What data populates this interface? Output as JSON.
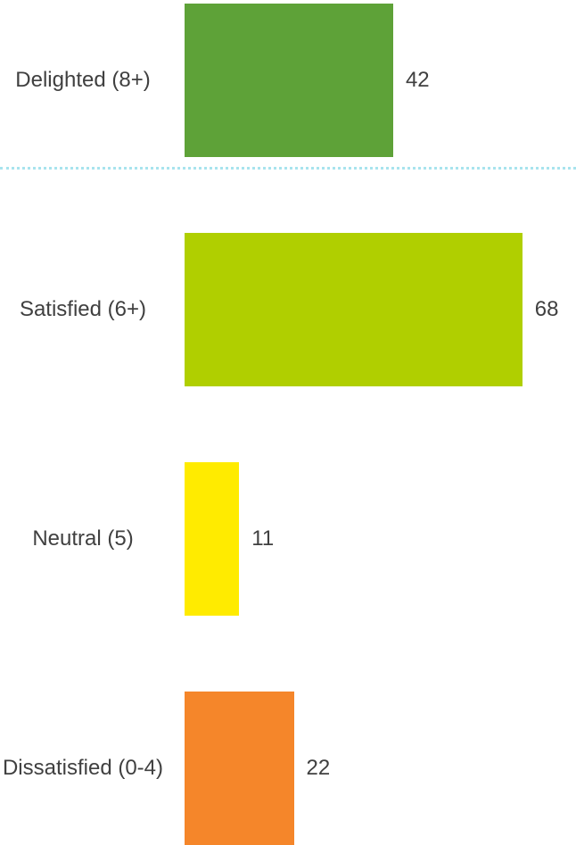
{
  "chart_data": {
    "type": "bar",
    "orientation": "horizontal",
    "categories": [
      "Delighted (8+)",
      "Satisfied (6+)",
      "Neutral (5)",
      "Dissatisfied (0-4)"
    ],
    "values": [
      42,
      68,
      11,
      22
    ],
    "colors": [
      "#5ea238",
      "#b0cf00",
      "#ffeb00",
      "#f5862a"
    ]
  }
}
